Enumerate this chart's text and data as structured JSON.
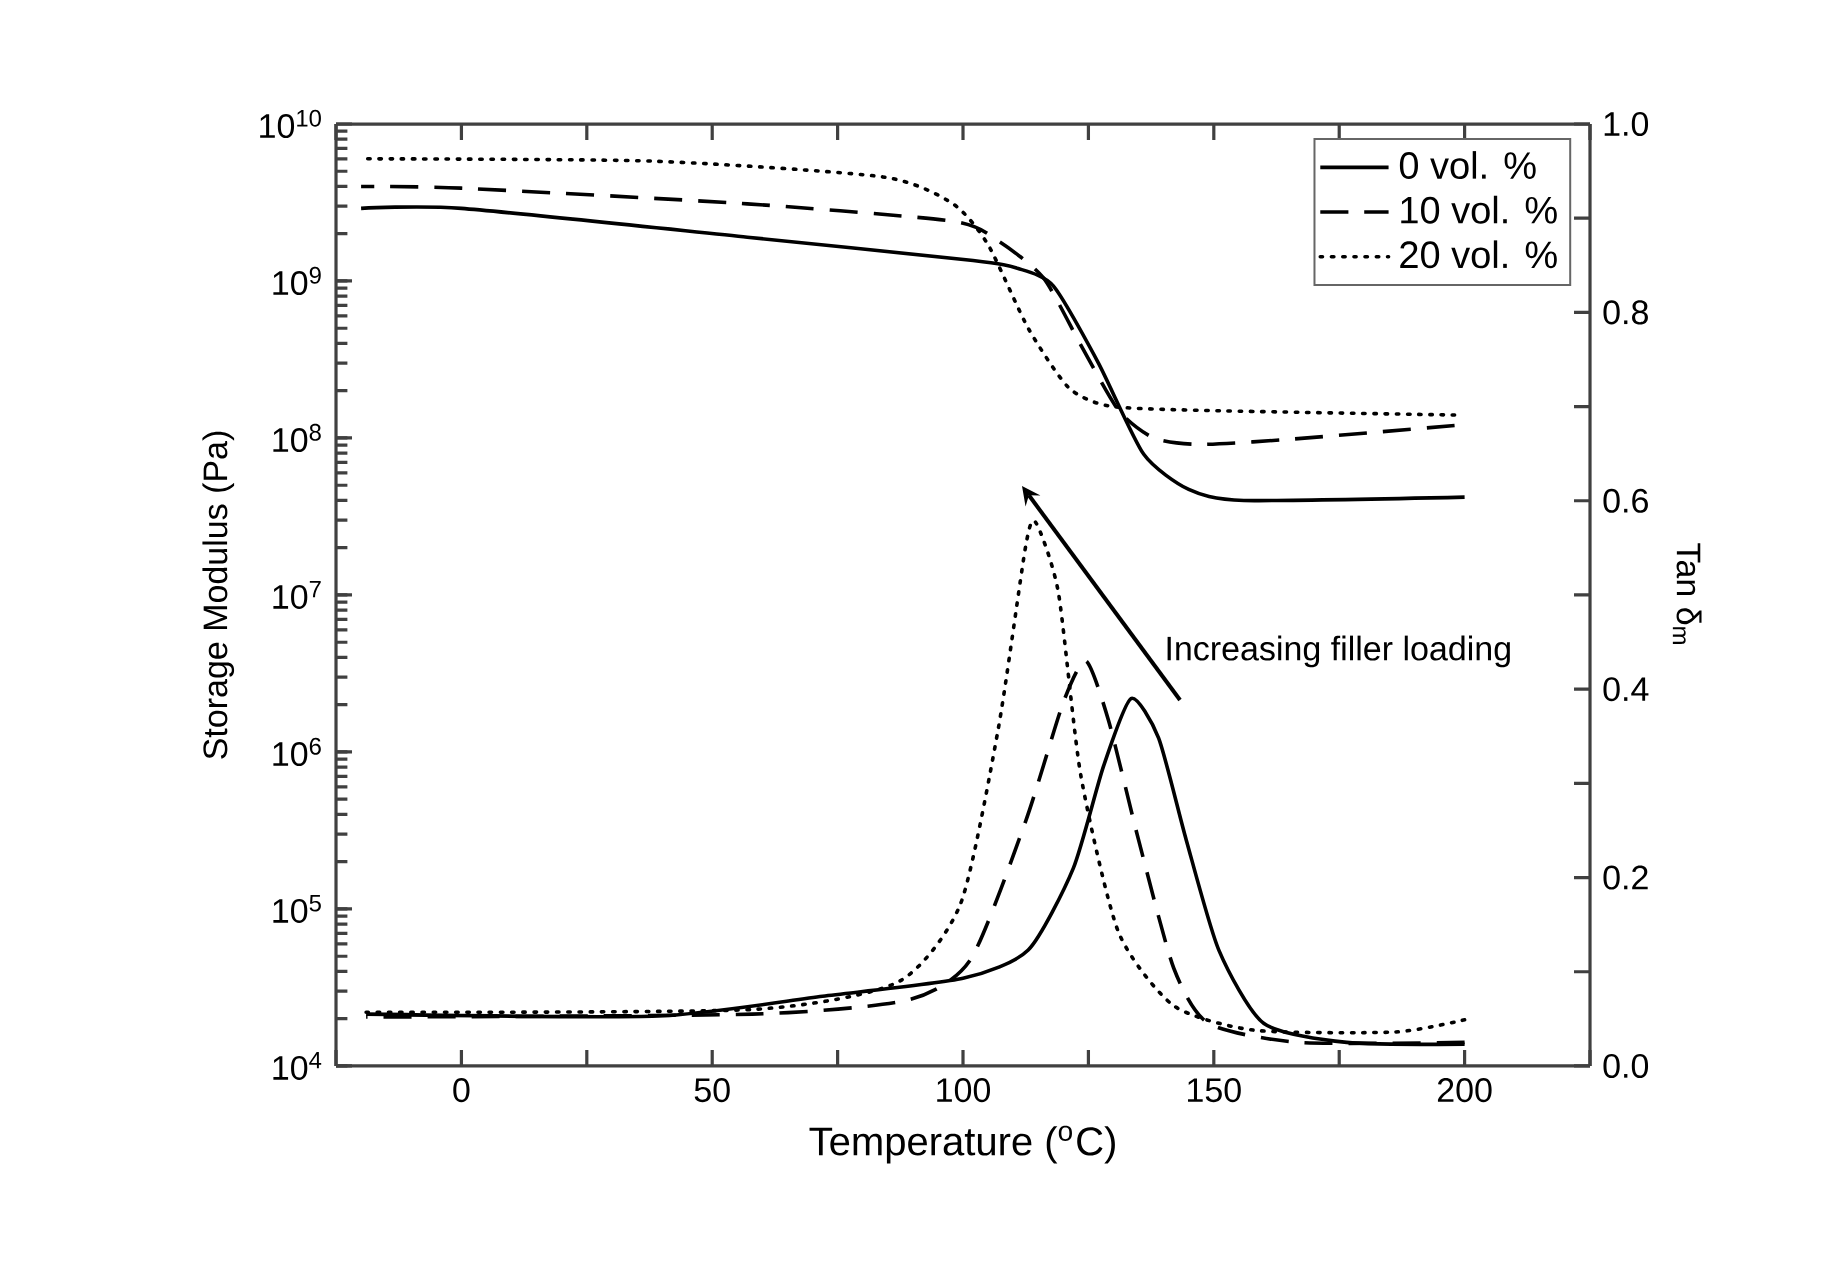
{
  "chart_data": {
    "type": "line",
    "xlabel": "Temperature ($^{o}$C)",
    "ylabel": "Storage Modulus (Pa)",
    "y2label": "Tan δ$_{m}$",
    "xlim": [
      -25,
      225
    ],
    "xticks": [
      {
        "value": -25,
        "label": null
      },
      0,
      {
        "value": 25,
        "label": null
      },
      50,
      {
        "value": 75,
        "label": null
      },
      100,
      {
        "value": 125,
        "label": null
      },
      150,
      {
        "value": 175,
        "label": null
      },
      200,
      {
        "value": 225,
        "label": null
      }
    ],
    "ylim": [
      10000,
      10000000000
    ],
    "yticks": [
      {
        "value": 10000,
        "label": "10$^{4}$"
      },
      {
        "value": 100000,
        "label": "10$^{5}$"
      },
      {
        "value": 1000000,
        "label": "10$^{6}$"
      },
      {
        "value": 10000000,
        "label": "10$^{7}$"
      },
      {
        "value": 100000000,
        "label": "10$^{8}$"
      },
      {
        "value": 1000000000,
        "label": "10$^{9}$"
      },
      {
        "value": 10000000000,
        "label": "10$^{10}$"
      }
    ],
    "y2lim": [
      0,
      1
    ],
    "y2ticks": [
      {
        "value": 0,
        "label": "0.0"
      },
      {
        "value": 0.1,
        "label": null
      },
      {
        "value": 0.2,
        "label": "0.2"
      },
      {
        "value": 0.3,
        "label": null
      },
      {
        "value": 0.4,
        "label": "0.4"
      },
      {
        "value": 0.5,
        "label": null
      },
      {
        "value": 0.6,
        "label": "0.6"
      },
      {
        "value": 0.7,
        "label": null
      },
      {
        "value": 0.8,
        "label": "0.8"
      },
      {
        "value": 0.9,
        "label": null
      },
      {
        "value": 1,
        "label": "1.0"
      }
    ],
    "log": "y",
    "legend": "top right",
    "annotations": [
      "Increasing filler loading"
    ],
    "series": [
      {
        "name": "0 vol. %",
        "color": "#000000",
        "line_style": "solid",
        "x": [
          -20,
          0,
          57,
          102,
          111,
          118,
          127,
          136,
          145,
          156,
          200
        ],
        "values": [
          2900000000,
          2900000000,
          1900000000,
          1350000000,
          1200000000,
          930000000,
          300000000,
          79000000,
          47000000,
          40000000,
          42000000
        ]
      },
      {
        "name": "10 vol. %",
        "color": "#000000",
        "line_style": "dashed",
        "x": [
          -20,
          0,
          57,
          98,
          107,
          116,
          123.5,
          131,
          138,
          147,
          165,
          198
        ],
        "values": [
          4000000000,
          3900000000,
          3100000000,
          2400000000,
          1800000000,
          1050000000,
          390000000,
          150000000,
          100000000,
          91000000,
          98000000,
          120000000
        ]
      },
      {
        "name": "20 vol. %",
        "color": "#000000",
        "line_style": "dotted",
        "x": [
          -20,
          38,
          84,
          98,
          105,
          113,
          121,
          129,
          147,
          198
        ],
        "values": [
          6000000000,
          5800000000,
          4600000000,
          3100000000,
          1700000000,
          500000000,
          210000000,
          160000000,
          150000000,
          140000000
        ]
      },
      {
        "color": "#000000",
        "line_style": "solid",
        "axis": "y2",
        "x": [
          -19,
          39,
          72,
          100,
          113,
          122,
          128,
          133.5,
          139,
          144.5,
          151,
          160,
          176.5,
          200
        ],
        "values": [
          0.055,
          0.053,
          0.074,
          0.093,
          0.123,
          0.21,
          0.318,
          0.39,
          0.348,
          0.24,
          0.123,
          0.045,
          0.025,
          0.023
        ]
      },
      {
        "color": "#000000",
        "line_style": "dashed",
        "axis": "y2",
        "x": [
          -19,
          58,
          89,
          101.5,
          112.5,
          120,
          124.5,
          129,
          135,
          142,
          149,
          167,
          200
        ],
        "values": [
          0.052,
          0.055,
          0.07,
          0.113,
          0.26,
          0.386,
          0.43,
          0.367,
          0.24,
          0.104,
          0.045,
          0.025,
          0.025
        ]
      },
      {
        "color": "#000000",
        "line_style": "dotted",
        "axis": "y2",
        "x": [
          -19,
          58,
          87,
          99.5,
          107,
          112.5,
          114.5,
          119,
          123.5,
          131,
          142,
          158,
          186,
          200
        ],
        "values": [
          0.057,
          0.06,
          0.089,
          0.172,
          0.357,
          0.552,
          0.577,
          0.503,
          0.308,
          0.142,
          0.064,
          0.038,
          0.036,
          0.049
        ]
      }
    ]
  }
}
